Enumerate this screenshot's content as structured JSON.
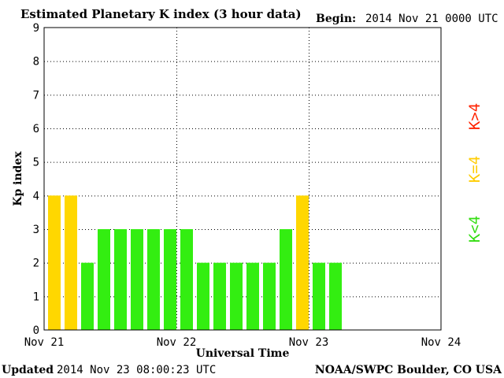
{
  "header": {
    "title": "Estimated Planetary K index (3 hour data)",
    "begin_label": "Begin:",
    "begin_value": "2014 Nov 21 0000 UTC"
  },
  "footer": {
    "updated_label": "Updated",
    "updated_value": "2014 Nov 23 08:00:23 UTC",
    "source": "NOAA/SWPC Boulder, CO USA"
  },
  "legend": [
    {
      "label": "K>4",
      "color": "#ff2200"
    },
    {
      "label": "K=4",
      "color": "#ffcc00"
    },
    {
      "label": "K<4",
      "color": "#33dd11"
    }
  ],
  "chart_data": {
    "type": "bar",
    "title": "Estimated Planetary K index (3 hour data)",
    "xlabel": "Universal Time",
    "ylabel": "Kp index",
    "ylim": [
      0,
      9
    ],
    "y_ticks": [
      "0",
      "1",
      "2",
      "3",
      "4",
      "5",
      "6",
      "7",
      "8",
      "9"
    ],
    "x_ticks": [
      "Nov 21",
      "Nov 22",
      "Nov 23",
      "Nov 24"
    ],
    "x_range_days": 3,
    "interval_hours": 3,
    "grid": true,
    "colors": {
      "below": "#33ee11",
      "equal": "#ffd700",
      "above": "#ff2200"
    },
    "values": [
      4,
      4,
      2,
      3,
      3,
      3,
      3,
      3,
      3,
      2,
      2,
      2,
      2,
      2,
      3,
      4,
      2,
      2
    ]
  }
}
